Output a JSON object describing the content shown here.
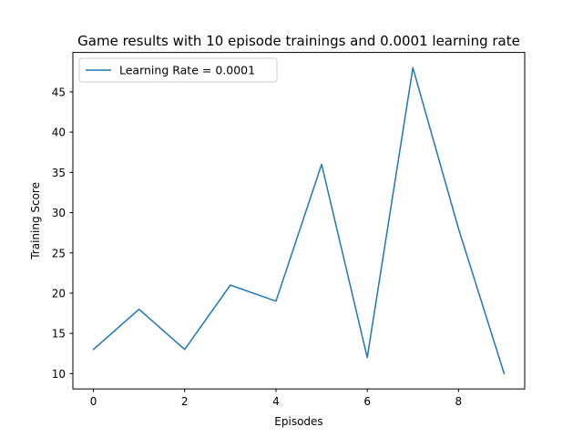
{
  "chart_data": {
    "type": "line",
    "title": "Game results with 10 episode trainings and 0.0001 learning rate",
    "xlabel": "Episodes",
    "ylabel": "Training Score",
    "xlim": [
      -0.45,
      9.45
    ],
    "ylim": [
      8.1,
      49.9
    ],
    "x_ticks": [
      0,
      2,
      4,
      6,
      8
    ],
    "y_ticks": [
      10,
      15,
      20,
      25,
      30,
      35,
      40,
      45
    ],
    "grid": false,
    "legend_position": "upper-left",
    "series": [
      {
        "name": "Learning Rate = 0.0001",
        "color": "#1f77b4",
        "x": [
          0,
          1,
          2,
          3,
          4,
          5,
          6,
          7,
          8,
          9
        ],
        "values": [
          13,
          18,
          13,
          21,
          19,
          36,
          12,
          48,
          28,
          10
        ]
      }
    ]
  }
}
